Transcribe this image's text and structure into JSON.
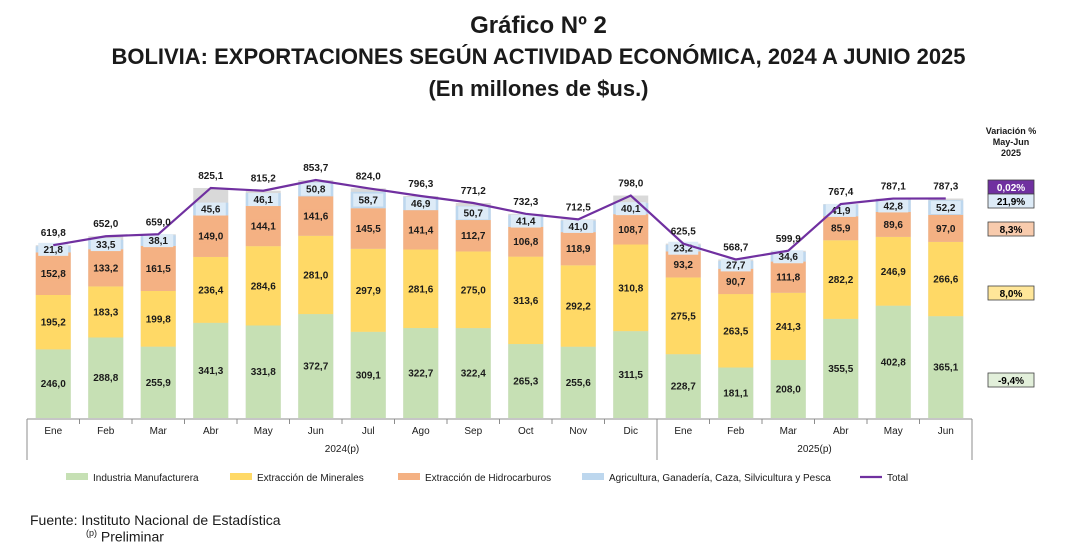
{
  "chart_data": {
    "type": "bar",
    "title": "Gráfico Nº 2",
    "subtitle": "BOLIVIA: EXPORTACIONES SEGÚN ACTIVIDAD ECONÓMICA, 2024 A JUNIO 2025",
    "unit_label": "(En millones de $us.)",
    "categories": [
      "Ene",
      "Feb",
      "Mar",
      "Abr",
      "May",
      "Jun",
      "Jul",
      "Ago",
      "Sep",
      "Oct",
      "Nov",
      "Dic",
      "Ene",
      "Feb",
      "Mar",
      "Abr",
      "May",
      "Jun"
    ],
    "year_groups": [
      {
        "label": "2024(p)",
        "from": 0,
        "to": 11
      },
      {
        "label": "2025(p)",
        "from": 12,
        "to": 17
      }
    ],
    "series": [
      {
        "name": "Industria Manufacturera",
        "type": "bar",
        "color": "#c6e0b4",
        "label_box": "#c6e0b4",
        "values": [
          246.0,
          288.8,
          255.9,
          341.3,
          331.8,
          372.7,
          309.1,
          322.7,
          322.4,
          265.3,
          255.6,
          311.5,
          228.7,
          181.1,
          208.0,
          355.5,
          402.8,
          365.1
        ]
      },
      {
        "name": "Extracción de Minerales",
        "type": "bar",
        "color": "#ffd966",
        "label_box": "#ffd966",
        "values": [
          195.2,
          183.3,
          199.8,
          236.4,
          284.6,
          281.0,
          297.9,
          281.6,
          275.0,
          313.6,
          292.2,
          310.8,
          275.5,
          263.5,
          241.3,
          282.2,
          246.9,
          266.6
        ]
      },
      {
        "name": "Extracción de Hidrocarburos",
        "type": "bar",
        "color": "#f4b183",
        "label_box": "#f4b183",
        "values": [
          152.8,
          133.2,
          161.5,
          149.0,
          144.1,
          141.6,
          145.5,
          141.4,
          112.7,
          106.8,
          118.9,
          108.7,
          93.2,
          90.7,
          111.8,
          85.9,
          89.6,
          97.0
        ]
      },
      {
        "name": "Agricultura, Ganadería, Caza, Silvicultura y Pesca",
        "type": "bar",
        "color": "#bdd7ee",
        "label_box": "#ddebf7",
        "values": [
          21.8,
          33.5,
          38.1,
          45.6,
          46.1,
          50.8,
          58.7,
          46.9,
          50.7,
          41.4,
          41.0,
          40.1,
          23.2,
          27.7,
          34.6,
          41.9,
          42.8,
          52.2
        ]
      },
      {
        "name": "Total",
        "type": "line",
        "color": "#7030a0",
        "values": [
          619.8,
          652.0,
          659.0,
          825.1,
          815.2,
          853.7,
          824.0,
          796.3,
          771.2,
          732.3,
          712.5,
          798.0,
          625.5,
          568.7,
          599.9,
          767.4,
          787.1,
          787.3
        ]
      }
    ],
    "variation": {
      "header": [
        "Variación %",
        "May-Jun",
        "2025"
      ],
      "items": [
        {
          "value": "0,02%",
          "bg": "#7030a0",
          "fg": "#ffffff",
          "anchor": "Total"
        },
        {
          "value": "21,9%",
          "bg": "#ddebf7",
          "fg": "#000000",
          "anchor": "Agricultura, Ganadería, Caza, Silvicultura y Pesca"
        },
        {
          "value": "8,3%",
          "bg": "#f8cbad",
          "fg": "#000000",
          "anchor": "Extracción de Hidrocarburos"
        },
        {
          "value": "8,0%",
          "bg": "#ffe699",
          "fg": "#000000",
          "anchor": "Extracción de Minerales"
        },
        {
          "value": "-9,4%",
          "bg": "#e2efda",
          "fg": "#000000",
          "anchor": "Industria Manufacturera"
        }
      ]
    },
    "ylim": [
      0,
      900
    ]
  },
  "footer": {
    "source": "Fuente: Instituto Nacional de Estadística",
    "note_mark": "(p)",
    "note": "Preliminar"
  }
}
